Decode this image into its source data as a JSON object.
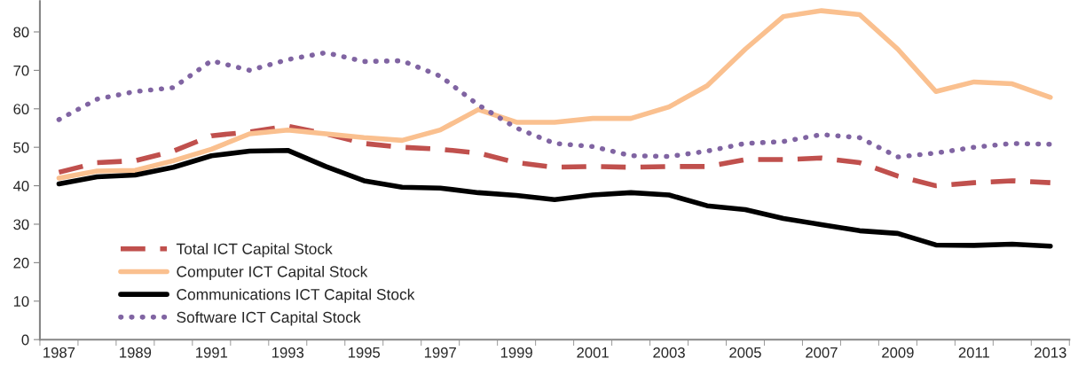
{
  "chart_data": {
    "type": "line",
    "categories": [
      "1987",
      null,
      "1989",
      null,
      "1991",
      null,
      "1993",
      null,
      "1995",
      null,
      "1997",
      null,
      "1999",
      null,
      "2001",
      null,
      "2003",
      null,
      "2005",
      null,
      "2007",
      null,
      "2009",
      null,
      "2011",
      null,
      "2013"
    ],
    "series": [
      {
        "name": "Total ICT Capital Stock",
        "color": "#c0504d",
        "line_style": "dashed",
        "values": [
          43.5,
          46,
          46.5,
          49,
          53,
          54,
          55.5,
          53.5,
          51,
          50,
          49.5,
          48.5,
          46,
          44.8,
          45,
          44.8,
          45,
          45,
          46.8,
          46.8,
          47.2,
          46,
          42.5,
          40,
          40.8,
          41.3,
          40.8
        ]
      },
      {
        "name": "Computer ICT Capital Stock",
        "color": "#fac08f",
        "line_style": "solid",
        "values": [
          42,
          43.8,
          44,
          46.5,
          49.5,
          53.5,
          54.5,
          53.5,
          52.5,
          51.8,
          54.5,
          59.8,
          56.5,
          56.5,
          57.5,
          57.5,
          60.5,
          66,
          75.5,
          84,
          85.5,
          84.5,
          75.5,
          64.5,
          67,
          66.5,
          63
        ]
      },
      {
        "name": "Communications ICT Capital Stock",
        "color": "#000000",
        "line_style": "solid",
        "values": [
          40.5,
          42.3,
          42.8,
          44.8,
          47.8,
          49,
          49.2,
          45,
          41.3,
          39.6,
          39.4,
          38.2,
          37.5,
          36.4,
          37.6,
          38.2,
          37.6,
          34.8,
          33.8,
          31.5,
          29.9,
          28.3,
          27.6,
          24.6,
          24.5,
          24.8,
          24.3
        ]
      },
      {
        "name": "Software ICT Capital Stock",
        "color": "#8064a2",
        "line_style": "dotted",
        "values": [
          57.2,
          62.5,
          64.5,
          65.5,
          72.5,
          70,
          72.8,
          74.6,
          72.3,
          72.5,
          68.5,
          61,
          55,
          51,
          50.2,
          47.8,
          47.6,
          49,
          51,
          51.5,
          53.3,
          52.5,
          47.5,
          48.5,
          50,
          51,
          50.8
        ]
      }
    ],
    "ylim": [
      0,
      88
    ],
    "yticks": [
      0,
      10,
      20,
      30,
      40,
      50,
      60,
      70,
      80
    ],
    "grid": false,
    "legend": "bottom left",
    "marker": "none"
  }
}
